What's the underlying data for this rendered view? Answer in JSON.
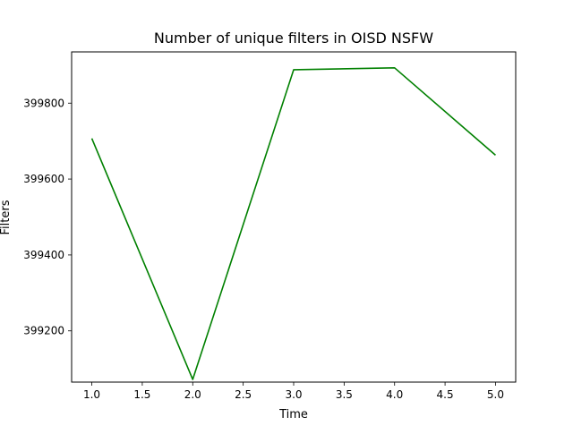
{
  "chart_data": {
    "type": "line",
    "title": "Number of unique filters in OISD NSFW",
    "xlabel": "Time",
    "ylabel": "Filters",
    "xlim": [
      0.8,
      5.2
    ],
    "ylim": [
      399065,
      399935
    ],
    "xticks": [
      1.0,
      1.5,
      2.0,
      2.5,
      3.0,
      3.5,
      4.0,
      4.5,
      5.0
    ],
    "xtick_labels": [
      "1.0",
      "1.5",
      "2.0",
      "2.5",
      "3.0",
      "3.5",
      "4.0",
      "4.5",
      "5.0"
    ],
    "yticks": [
      399200,
      399400,
      399600,
      399800
    ],
    "ytick_labels": [
      "399200",
      "399400",
      "399600",
      "399800"
    ],
    "grid": false,
    "series": [
      {
        "color": "#008000",
        "x": [
          1,
          2,
          3,
          4,
          5
        ],
        "y": [
          399707,
          399072,
          399888,
          399893,
          399663
        ]
      }
    ]
  }
}
